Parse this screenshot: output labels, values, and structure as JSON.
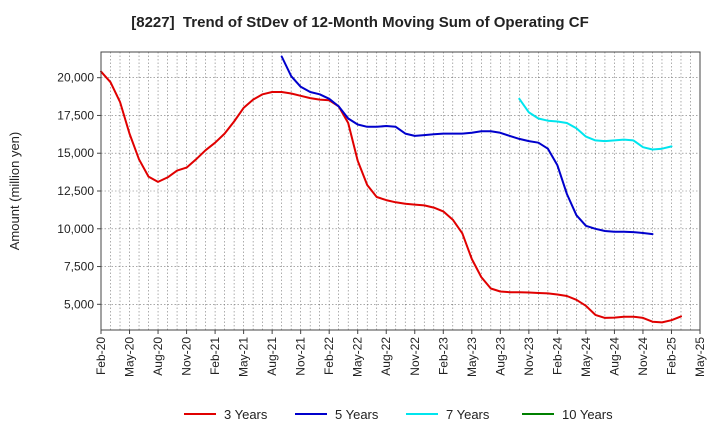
{
  "chart_data": {
    "type": "line",
    "title": "[8227]  Trend of StDev of 12-Month Moving Sum of Operating CF",
    "xlabel": "",
    "ylabel": "Amount (million yen)",
    "ylim": [
      3300,
      21700
    ],
    "yticks": [
      5000,
      7500,
      10000,
      12500,
      15000,
      17500,
      20000
    ],
    "ytick_labels": [
      "5,000",
      "7,500",
      "10,000",
      "12,500",
      "15,000",
      "17,500",
      "20,000"
    ],
    "xtick_labels": [
      "Feb-20",
      "May-20",
      "Aug-20",
      "Nov-20",
      "Feb-21",
      "May-21",
      "Aug-21",
      "Nov-21",
      "Feb-22",
      "May-22",
      "Aug-22",
      "Nov-22",
      "Feb-23",
      "May-23",
      "Aug-23",
      "Nov-23",
      "Feb-24",
      "May-24",
      "Aug-24",
      "Nov-24",
      "Feb-25",
      "May-25"
    ],
    "x_start": "Feb-20",
    "x_end": "May-25",
    "grid": true,
    "legend_position": "bottom",
    "series": [
      {
        "name": "3 Years",
        "color": "#e00000",
        "start": "Feb-20",
        "values": [
          20400,
          19700,
          18400,
          16300,
          14600,
          13450,
          13100,
          13400,
          13850,
          14050,
          14600,
          15200,
          15700,
          16300,
          17100,
          18000,
          18550,
          18900,
          19050,
          19050,
          18950,
          18800,
          18650,
          18550,
          18500,
          18100,
          17000,
          14500,
          12900,
          12100,
          11900,
          11750,
          11650,
          11600,
          11550,
          11400,
          11150,
          10600,
          9700,
          8000,
          6800,
          6050,
          5850,
          5800,
          5800,
          5780,
          5750,
          5720,
          5650,
          5550,
          5300,
          4900,
          4300,
          4100,
          4120,
          4180,
          4180,
          4100,
          3850,
          3800,
          3950,
          4200
        ]
      },
      {
        "name": "5 Years",
        "color": "#0000cc",
        "start": "Sep-21",
        "values": [
          21400,
          20100,
          19400,
          19050,
          18900,
          18600,
          18100,
          17300,
          16900,
          16750,
          16750,
          16800,
          16750,
          16300,
          16150,
          16200,
          16250,
          16300,
          16300,
          16300,
          16350,
          16450,
          16450,
          16350,
          16150,
          15950,
          15800,
          15700,
          15300,
          14200,
          12300,
          10900,
          10200,
          10000,
          9850,
          9800,
          9800,
          9780,
          9720,
          9650
        ]
      },
      {
        "name": "7 Years",
        "color": "#00e5ee",
        "start": "Oct-23",
        "values": [
          18600,
          17700,
          17300,
          17150,
          17100,
          17000,
          16650,
          16100,
          15850,
          15800,
          15850,
          15900,
          15850,
          15400,
          15250,
          15300,
          15450
        ]
      },
      {
        "name": "10 Years",
        "color": "#008000",
        "start": "Feb-25",
        "values": []
      }
    ]
  }
}
